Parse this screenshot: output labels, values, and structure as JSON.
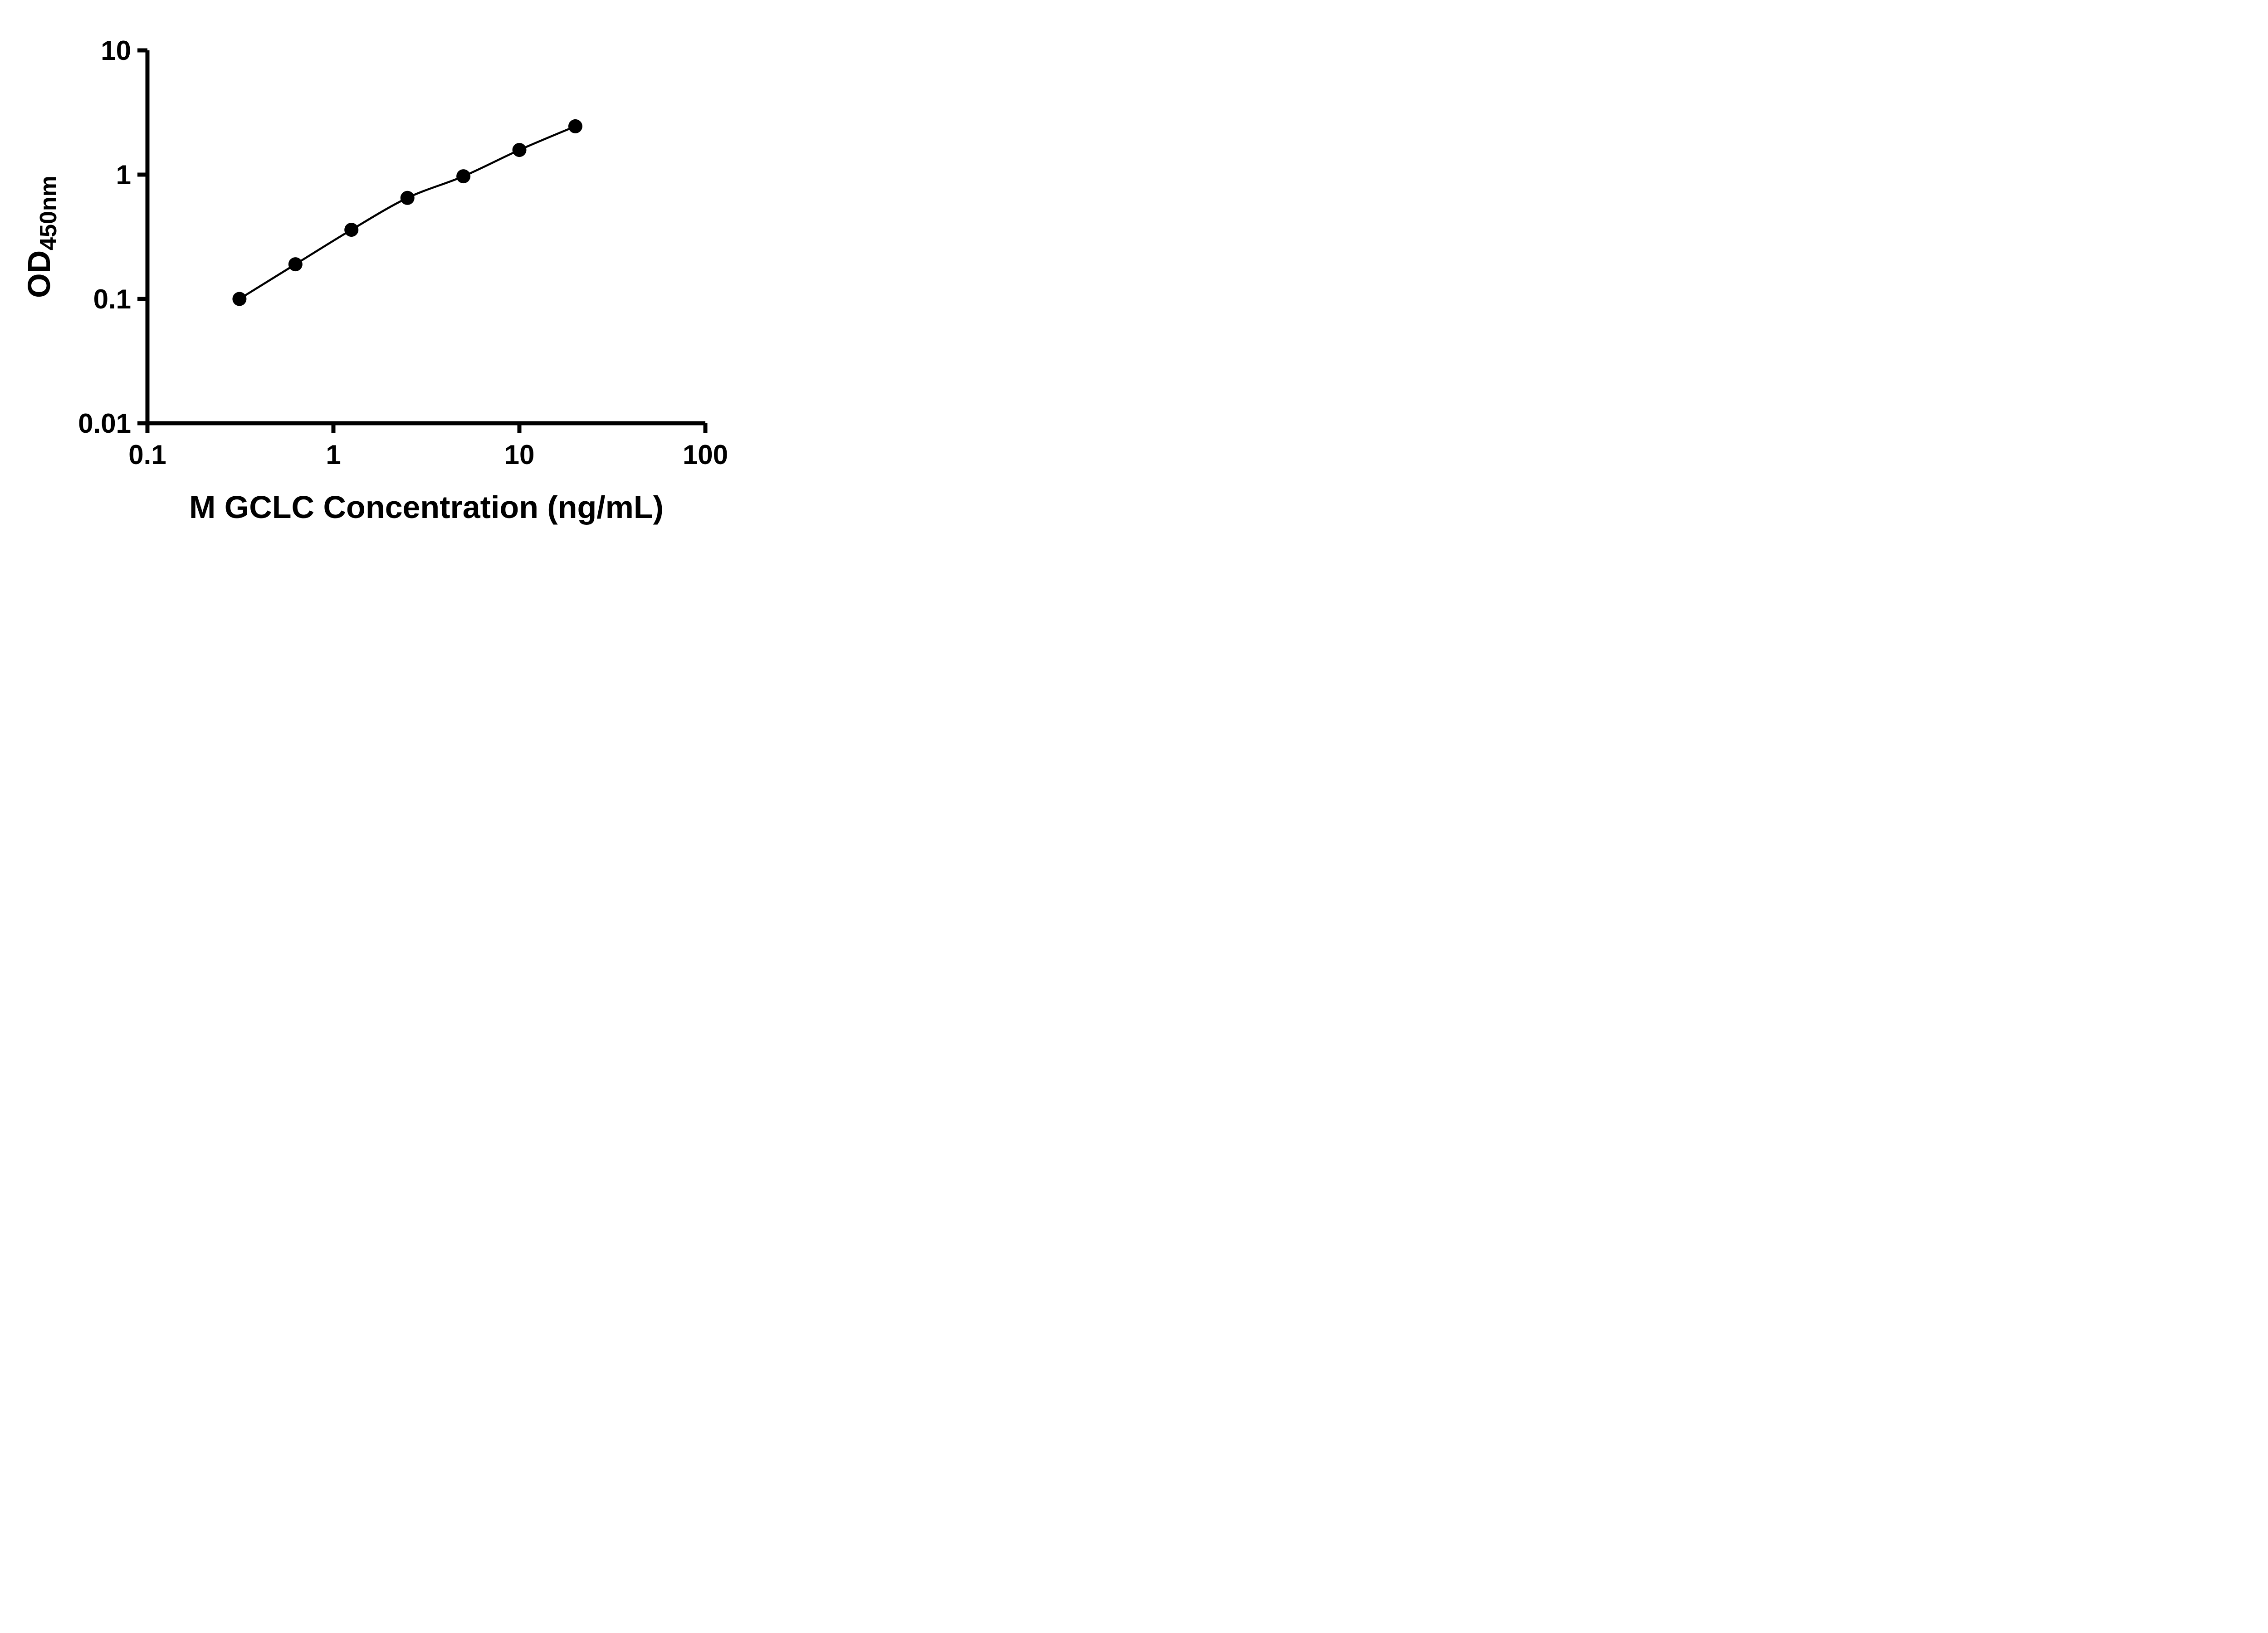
{
  "figure": {
    "background_color": "#ffffff",
    "axis_color": "#000000",
    "text_color": "#000000"
  },
  "chart_data": {
    "type": "scatter",
    "subtype": "log-log ELISA standard curve with connecting fit line",
    "title": "",
    "xlabel": "M GCLC Concentration (ng/mL)",
    "ylabel": "OD450nm",
    "ylabel_main": "OD",
    "ylabel_sub": "450nm",
    "x_scale": "log10",
    "y_scale": "log10",
    "xlim": [
      0.1,
      100
    ],
    "ylim": [
      0.01,
      10
    ],
    "x_ticks": [
      0.1,
      1,
      10,
      100
    ],
    "x_tick_labels": [
      "0.1",
      "1",
      "10",
      "100"
    ],
    "y_ticks": [
      0.01,
      0.1,
      1,
      10
    ],
    "y_tick_labels": [
      "0.01",
      "0.1",
      "1",
      "10"
    ],
    "grid": false,
    "legend": "none",
    "marker_color": "#000000",
    "line_color": "#000000",
    "series": [
      {
        "x": [
          0.3125,
          0.625,
          1.25,
          2.5,
          5,
          10,
          20
        ],
        "y": [
          0.1,
          0.19,
          0.36,
          0.65,
          0.97,
          1.58,
          2.45
        ]
      }
    ]
  }
}
